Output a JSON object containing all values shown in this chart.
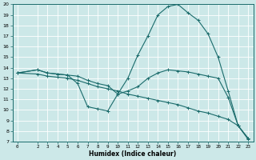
{
  "title": "",
  "xlabel": "Humidex (Indice chaleur)",
  "bg_color": "#cce8e8",
  "line_color": "#1a6b6b",
  "grid_color": "#ffffff",
  "xlim": [
    -0.5,
    23.5
  ],
  "ylim": [
    7,
    20
  ],
  "xticks": [
    0,
    2,
    3,
    4,
    5,
    6,
    7,
    8,
    9,
    10,
    11,
    12,
    13,
    14,
    15,
    16,
    17,
    18,
    19,
    20,
    21,
    22,
    23
  ],
  "yticks": [
    7,
    8,
    9,
    10,
    11,
    12,
    13,
    14,
    15,
    16,
    17,
    18,
    19,
    20
  ],
  "lines": [
    {
      "x": [
        0,
        2,
        3,
        4,
        5,
        6,
        7,
        8,
        9,
        10,
        11,
        12,
        13,
        14,
        15,
        16,
        17,
        18,
        19,
        20,
        21,
        22,
        23
      ],
      "y": [
        13.5,
        13.8,
        13.5,
        13.4,
        13.3,
        12.5,
        10.3,
        10.1,
        9.9,
        11.5,
        13.0,
        15.2,
        17.0,
        19.0,
        19.8,
        20.0,
        19.2,
        18.5,
        17.2,
        15.0,
        11.8,
        8.5,
        7.3
      ]
    },
    {
      "x": [
        0,
        2,
        3,
        4,
        5,
        6,
        7,
        8,
        9,
        10,
        11,
        12,
        13,
        14,
        15,
        16,
        17,
        18,
        19,
        20,
        21,
        22,
        23
      ],
      "y": [
        13.5,
        13.8,
        13.5,
        13.4,
        13.3,
        13.2,
        12.8,
        12.5,
        12.3,
        11.5,
        11.8,
        12.2,
        13.0,
        13.5,
        13.8,
        13.7,
        13.6,
        13.4,
        13.2,
        13.0,
        11.2,
        8.5,
        7.2
      ]
    },
    {
      "x": [
        0,
        2,
        3,
        4,
        5,
        6,
        7,
        8,
        9,
        10,
        11,
        12,
        13,
        14,
        15,
        16,
        17,
        18,
        19,
        20,
        21,
        22,
        23
      ],
      "y": [
        13.5,
        13.4,
        13.2,
        13.1,
        13.0,
        12.8,
        12.5,
        12.2,
        12.0,
        11.8,
        11.5,
        11.3,
        11.1,
        10.9,
        10.7,
        10.5,
        10.2,
        9.9,
        9.7,
        9.4,
        9.1,
        8.5,
        7.3
      ]
    }
  ]
}
